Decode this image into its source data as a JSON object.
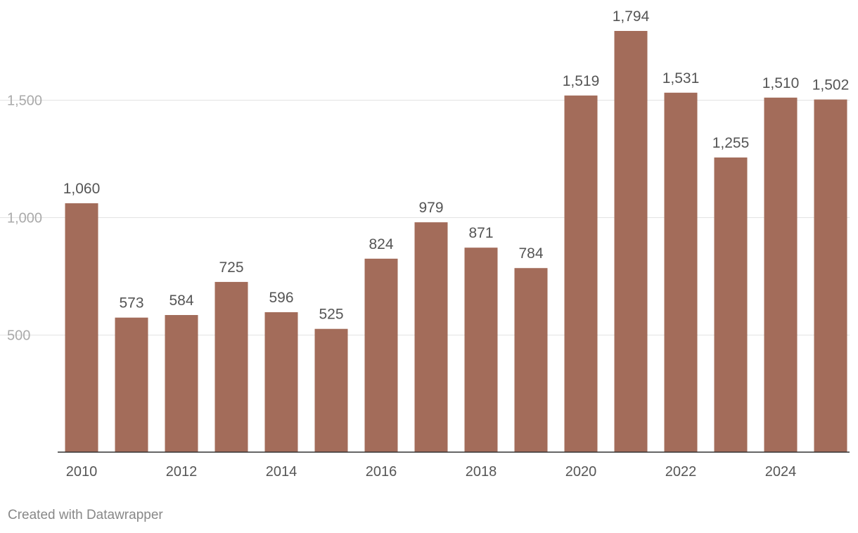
{
  "chart_data": {
    "type": "bar",
    "title": "",
    "xlabel": "",
    "ylabel": "",
    "categories": [
      "2010",
      "2011",
      "2012",
      "2013",
      "2014",
      "2015",
      "2016",
      "2017",
      "2018",
      "2019",
      "2020",
      "2021",
      "2022",
      "2023",
      "2024",
      "2025"
    ],
    "values": [
      1060,
      573,
      584,
      725,
      596,
      525,
      824,
      979,
      871,
      784,
      1519,
      1794,
      1531,
      1255,
      1510,
      1502
    ],
    "value_labels": [
      "1,060",
      "573",
      "584",
      "725",
      "596",
      "525",
      "824",
      "979",
      "871",
      "784",
      "1,519",
      "1,794",
      "1,531",
      "1,255",
      "1,510",
      "1,502"
    ],
    "ylim": [
      0,
      1794
    ],
    "y_ticks": [
      {
        "value": 500,
        "label": "500"
      },
      {
        "value": 1000,
        "label": "1,000"
      },
      {
        "value": 1500,
        "label": "1,500"
      }
    ],
    "x_tick_labels": [
      "2010",
      "2012",
      "2014",
      "2016",
      "2018",
      "2020",
      "2022",
      "2024"
    ],
    "grid": true,
    "bar_color": "#a36c5a",
    "legend": "none"
  },
  "footer": {
    "credit": "Created with Datawrapper"
  }
}
